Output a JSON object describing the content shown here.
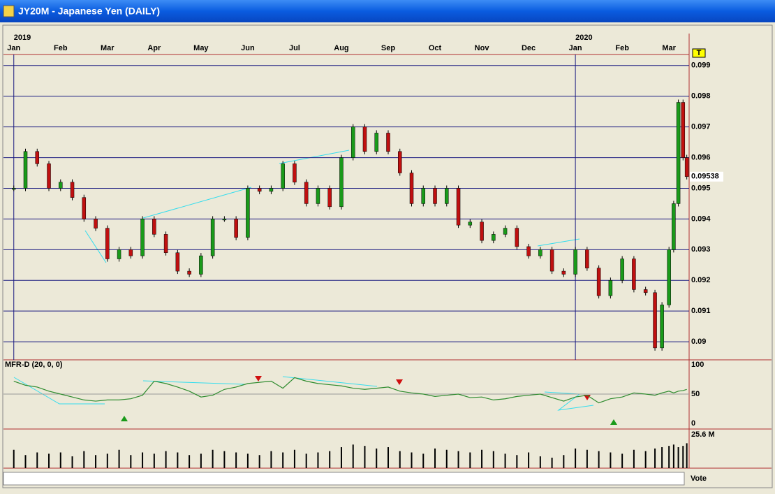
{
  "window_title": "JY20M - Japanese Yen (DAILY)",
  "chart_data": [
    {
      "type": "candle",
      "x": [
        0,
        0.25,
        0.5,
        0.75,
        1,
        1.25,
        1.5,
        1.75,
        2,
        2.25,
        2.5,
        2.75,
        3,
        3.25,
        3.5,
        3.75,
        4,
        4.25,
        4.5,
        4.75,
        5,
        5.25,
        5.5,
        5.75,
        6,
        6.25,
        6.5,
        6.75,
        7,
        7.25,
        7.5,
        7.75,
        8,
        8.25,
        8.5,
        8.75,
        9,
        9.25,
        9.5,
        9.75,
        10,
        10.25,
        10.5,
        10.75,
        11,
        11.25,
        11.5,
        11.75,
        12,
        12.25,
        12.5,
        12.75,
        13,
        13.25,
        13.5,
        13.7,
        13.85,
        14,
        14.1,
        14.2,
        14.3,
        14.38
      ],
      "values": [
        0.095,
        0.0962,
        0.0958,
        0.095,
        0.0952,
        0.0947,
        0.094,
        0.0937,
        0.0927,
        0.093,
        0.0928,
        0.094,
        0.0935,
        0.0929,
        0.0923,
        0.0922,
        0.0928,
        0.094,
        0.094,
        0.0934,
        0.095,
        0.0949,
        0.095,
        0.0958,
        0.0952,
        0.0945,
        0.095,
        0.0944,
        0.096,
        0.097,
        0.0962,
        0.0968,
        0.0962,
        0.0955,
        0.0945,
        0.095,
        0.0945,
        0.095,
        0.0938,
        0.0939,
        0.0933,
        0.0935,
        0.0937,
        0.0931,
        0.0928,
        0.093,
        0.0923,
        0.0922,
        0.093,
        0.0924,
        0.0915,
        0.092,
        0.0927,
        0.0917,
        0.0916,
        0.0898,
        0.0912,
        0.093,
        0.0945,
        0.0978,
        0.096,
        0.09538
      ],
      "up_color": "#1a9a1a",
      "down_color": "#c01010",
      "xlim": [
        -0.22,
        14.43
      ],
      "xticks": [
        {
          "value": 0,
          "label": "Jan"
        },
        {
          "value": 1,
          "label": "Feb"
        },
        {
          "value": 2,
          "label": "Mar"
        },
        {
          "value": 3,
          "label": "Apr"
        },
        {
          "value": 4,
          "label": "May"
        },
        {
          "value": 5,
          "label": "Jun"
        },
        {
          "value": 6,
          "label": "Jul"
        },
        {
          "value": 7,
          "label": "Aug"
        },
        {
          "value": 8,
          "label": "Sep"
        },
        {
          "value": 9,
          "label": "Oct"
        },
        {
          "value": 10,
          "label": "Nov"
        },
        {
          "value": 11,
          "label": "Dec"
        },
        {
          "value": 12,
          "label": "Jan"
        },
        {
          "value": 13,
          "label": "Feb"
        },
        {
          "value": 14,
          "label": "Mar"
        }
      ],
      "year_ticks": [
        {
          "value": 0,
          "label": "2019"
        },
        {
          "value": 12,
          "label": "2020"
        }
      ],
      "ylim": [
        0.08941,
        0.09936
      ],
      "yticks": [
        0.09,
        0.091,
        0.092,
        0.093,
        0.094,
        0.095,
        0.096,
        0.097,
        0.098,
        0.099
      ],
      "last_value": 0.09538,
      "marker": "T",
      "grid": true
    },
    {
      "type": "line",
      "title": "MFR-D (20, 0, 0)",
      "color": "#2e8b2e",
      "values": [
        72,
        65,
        62,
        55,
        50,
        45,
        40,
        38,
        40,
        40,
        42,
        48,
        72,
        68,
        62,
        55,
        45,
        48,
        58,
        62,
        68,
        70,
        72,
        60,
        78,
        72,
        68,
        66,
        64,
        60,
        58,
        60,
        62,
        55,
        52,
        50,
        46,
        48,
        50,
        44,
        45,
        40,
        42,
        46,
        48,
        50,
        44,
        38,
        45,
        48,
        35,
        42,
        45,
        52,
        50,
        48,
        52,
        55,
        52,
        55,
        56,
        58
      ],
      "ylim": [
        -9.5,
        108.3
      ],
      "yticks": [
        0,
        50,
        100
      ]
    },
    {
      "type": "volume",
      "color": "#000000",
      "values": [
        14,
        10,
        12,
        11,
        12,
        9,
        13,
        10,
        11,
        14,
        10,
        12,
        11,
        13,
        12,
        10,
        11,
        14,
        13,
        12,
        11,
        10,
        13,
        12,
        14,
        11,
        12,
        13,
        16,
        18,
        17,
        15,
        16,
        13,
        12,
        11,
        15,
        14,
        13,
        12,
        14,
        13,
        11,
        10,
        12,
        9,
        8,
        10,
        15,
        14,
        13,
        12,
        11,
        14,
        13,
        15,
        16,
        17,
        18,
        16,
        17,
        19
      ],
      "ylim": [
        0,
        25.6
      ],
      "yticks": [
        {
          "value": 25.6,
          "label": "25.6 M"
        }
      ]
    }
  ],
  "footer": {
    "label": "Vote"
  }
}
